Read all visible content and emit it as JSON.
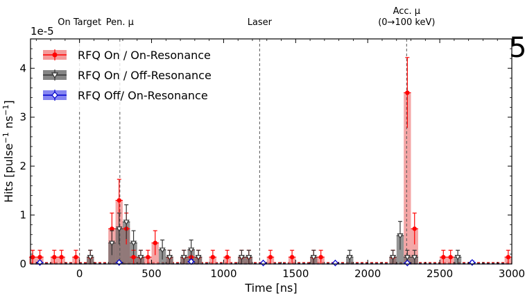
{
  "chart_data": {
    "type": "bar",
    "panel_label": "5",
    "x_unit": "ns",
    "y_unit": "pulse^-1 ns^-1",
    "xlabel": "Time [ns]",
    "ylabel_base": "Hits [pulse",
    "ylabel_exp1": "−1",
    "ylabel_mid": " ns",
    "ylabel_exp2": "−1",
    "ylabel_end": "]",
    "y_offset_label": "1e-5",
    "xlim": [
      -340,
      3000
    ],
    "ylim": [
      0,
      4.6
    ],
    "x_ticks": [
      0,
      500,
      1000,
      1500,
      2000,
      2500,
      3000
    ],
    "x_tick_labels": [
      "0",
      "500",
      "1000",
      "1500",
      "2000",
      "2500",
      "3000"
    ],
    "y_ticks": [
      0,
      1,
      2,
      3,
      4
    ],
    "y_tick_labels": [
      "0",
      "1",
      "2",
      "3",
      "4"
    ],
    "bin_width": 50,
    "markers": [
      {
        "label": "On Target",
        "x": 0
      },
      {
        "label": "Pen. μ",
        "x": 280
      },
      {
        "label": "Laser",
        "x": 1250
      },
      {
        "label": "Acc. μ",
        "label2": "(0→100 keV)",
        "x": 2270
      }
    ],
    "legend": [
      {
        "label": "RFQ On / On-Resonance",
        "color": "#ff0000",
        "fill": "#f08080",
        "marker": "circle"
      },
      {
        "label": "RFQ On / Off-Resonance",
        "color": "#333333",
        "fill": "#666666",
        "marker": "triangle-down"
      },
      {
        "label": "RFQ Off/ On-Resonance",
        "color": "#0000cc",
        "fill": "#6666ee",
        "marker": "diamond"
      }
    ],
    "series": [
      {
        "name": "RFQ On / On-Resonance",
        "color": "#ff0000",
        "fill": "#f08080",
        "points": [
          {
            "x": -325,
            "y": 0.14,
            "err": 0.14
          },
          {
            "x": -275,
            "y": 0.14,
            "err": 0.14
          },
          {
            "x": -175,
            "y": 0.14,
            "err": 0.14
          },
          {
            "x": -125,
            "y": 0.14,
            "err": 0.14
          },
          {
            "x": -25,
            "y": 0.14,
            "err": 0.14
          },
          {
            "x": 75,
            "y": 0.14,
            "err": 0.14
          },
          {
            "x": 225,
            "y": 0.72,
            "err": 0.32
          },
          {
            "x": 275,
            "y": 1.3,
            "err": 0.43
          },
          {
            "x": 325,
            "y": 0.72,
            "err": 0.32
          },
          {
            "x": 375,
            "y": 0.14,
            "err": 0.14
          },
          {
            "x": 425,
            "y": 0.14,
            "err": 0.14
          },
          {
            "x": 475,
            "y": 0.14,
            "err": 0.14
          },
          {
            "x": 525,
            "y": 0.43,
            "err": 0.25
          },
          {
            "x": 625,
            "y": 0.14,
            "err": 0.14
          },
          {
            "x": 725,
            "y": 0.14,
            "err": 0.14
          },
          {
            "x": 775,
            "y": 0.14,
            "err": 0.14
          },
          {
            "x": 825,
            "y": 0.14,
            "err": 0.14
          },
          {
            "x": 925,
            "y": 0.14,
            "err": 0.14
          },
          {
            "x": 1025,
            "y": 0.14,
            "err": 0.14
          },
          {
            "x": 1125,
            "y": 0.14,
            "err": 0.14
          },
          {
            "x": 1175,
            "y": 0.14,
            "err": 0.14
          },
          {
            "x": 1325,
            "y": 0.14,
            "err": 0.14
          },
          {
            "x": 1475,
            "y": 0.14,
            "err": 0.14
          },
          {
            "x": 1625,
            "y": 0.14,
            "err": 0.14
          },
          {
            "x": 1675,
            "y": 0.14,
            "err": 0.14
          },
          {
            "x": 2175,
            "y": 0.14,
            "err": 0.14
          },
          {
            "x": 2275,
            "y": 3.5,
            "err": 0.72
          },
          {
            "x": 2325,
            "y": 0.72,
            "err": 0.32
          },
          {
            "x": 2525,
            "y": 0.14,
            "err": 0.14
          },
          {
            "x": 2575,
            "y": 0.14,
            "err": 0.14
          },
          {
            "x": 2975,
            "y": 0.14,
            "err": 0.14
          }
        ]
      },
      {
        "name": "RFQ On / Off-Resonance",
        "color": "#333333",
        "fill": "#666666",
        "points": [
          {
            "x": 75,
            "y": 0.14,
            "err": 0.14
          },
          {
            "x": 225,
            "y": 0.43,
            "err": 0.25
          },
          {
            "x": 275,
            "y": 0.72,
            "err": 0.32
          },
          {
            "x": 325,
            "y": 0.86,
            "err": 0.35
          },
          {
            "x": 375,
            "y": 0.43,
            "err": 0.25
          },
          {
            "x": 425,
            "y": 0.14,
            "err": 0.14
          },
          {
            "x": 575,
            "y": 0.29,
            "err": 0.2
          },
          {
            "x": 625,
            "y": 0.14,
            "err": 0.14
          },
          {
            "x": 725,
            "y": 0.14,
            "err": 0.14
          },
          {
            "x": 775,
            "y": 0.29,
            "err": 0.2
          },
          {
            "x": 825,
            "y": 0.14,
            "err": 0.14
          },
          {
            "x": 1125,
            "y": 0.14,
            "err": 0.14
          },
          {
            "x": 1175,
            "y": 0.14,
            "err": 0.14
          },
          {
            "x": 1625,
            "y": 0.14,
            "err": 0.14
          },
          {
            "x": 1875,
            "y": 0.14,
            "err": 0.14
          },
          {
            "x": 2175,
            "y": 0.14,
            "err": 0.14
          },
          {
            "x": 2225,
            "y": 0.58,
            "err": 0.29
          },
          {
            "x": 2275,
            "y": 0.14,
            "err": 0.14
          },
          {
            "x": 2325,
            "y": 0.14,
            "err": 0.14
          },
          {
            "x": 2625,
            "y": 0.14,
            "err": 0.14
          }
        ]
      },
      {
        "name": "RFQ Off/ On-Resonance",
        "color": "#0000cc",
        "fill": "#6666ee",
        "points": [
          {
            "x": -275,
            "y": 0.03,
            "err": 0.03
          },
          {
            "x": 275,
            "y": 0.03,
            "err": 0.03
          },
          {
            "x": 775,
            "y": 0.05,
            "err": 0.04
          },
          {
            "x": 1275,
            "y": 0.02,
            "err": 0.02
          },
          {
            "x": 1775,
            "y": 0.02,
            "err": 0.02
          },
          {
            "x": 2275,
            "y": 0.02,
            "err": 0.02
          },
          {
            "x": 2725,
            "y": 0.03,
            "err": 0.03
          }
        ]
      }
    ]
  }
}
